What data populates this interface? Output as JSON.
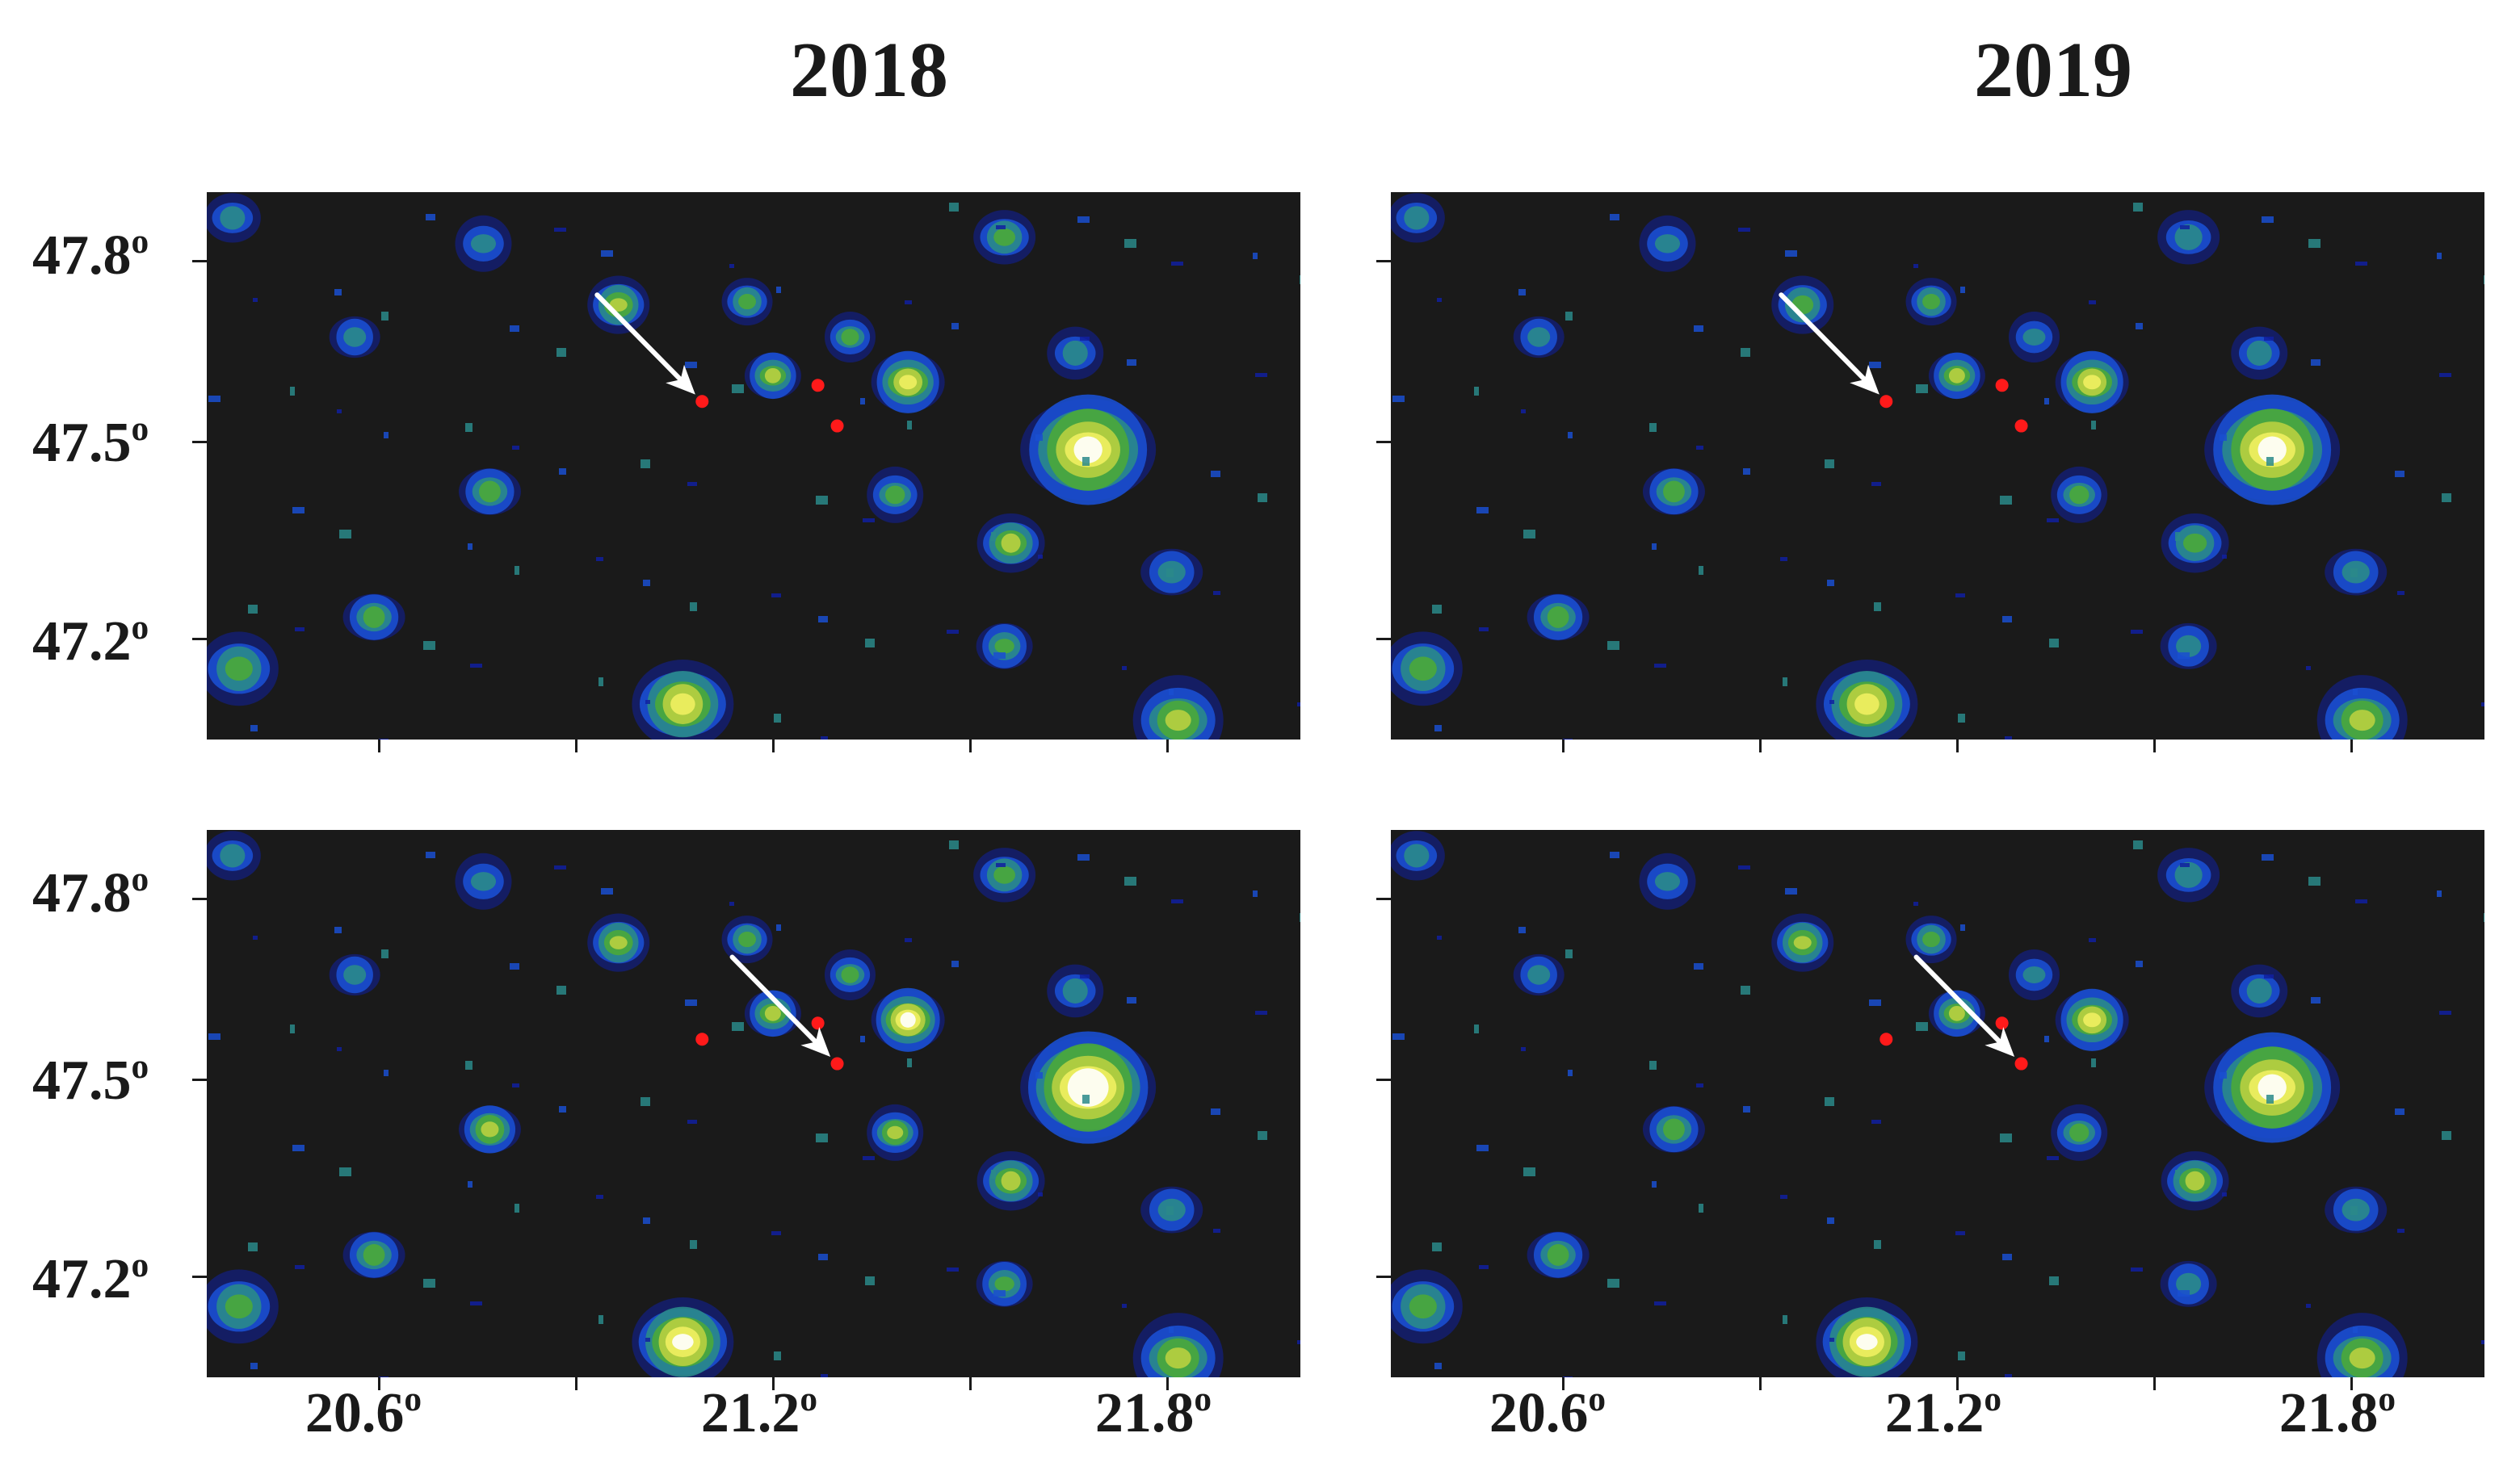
{
  "columns": [
    {
      "title": "2018"
    },
    {
      "title": "2019"
    }
  ],
  "axes": {
    "lat_labels": [
      "47.8",
      "47.5",
      "47.2"
    ],
    "lon_labels": [
      "20.6",
      "21.2",
      "21.8"
    ],
    "degree_symbol": "o"
  },
  "colors": {
    "background": "#1a1a1a",
    "marker": "#ff1a1a",
    "arrow": "#ffffff",
    "light_scale": [
      "#1020a0",
      "#1a4fd0",
      "#2a8a8a",
      "#4aa83a",
      "#b8d040",
      "#f0f060",
      "#ffffff"
    ]
  },
  "icons": [
    "red-marker-icon",
    "white-arrow-icon"
  ],
  "map_data": {
    "lat_range": [
      47.02,
      47.87
    ],
    "lon_range": [
      20.28,
      21.98
    ],
    "markers": [
      {
        "lon": 21.05,
        "lat": 47.545
      },
      {
        "lon": 21.23,
        "lat": 47.57
      },
      {
        "lon": 21.26,
        "lat": 47.507
      }
    ],
    "highlighted_marker": {
      "top_row": 0,
      "bottom_row": 2
    },
    "light_sources": [
      {
        "lon": 21.65,
        "lat": 47.47,
        "strength": 1.0,
        "spread": 1.0
      },
      {
        "lon": 21.02,
        "lat": 47.075,
        "strength": 0.85,
        "spread": 0.7
      },
      {
        "lon": 21.79,
        "lat": 47.05,
        "strength": 0.55,
        "spread": 0.6
      },
      {
        "lon": 21.37,
        "lat": 47.575,
        "strength": 0.8,
        "spread": 0.45
      },
      {
        "lon": 20.92,
        "lat": 47.695,
        "strength": 0.5,
        "spread": 0.35
      },
      {
        "lon": 20.72,
        "lat": 47.405,
        "strength": 0.45,
        "spread": 0.35
      },
      {
        "lon": 21.53,
        "lat": 47.325,
        "strength": 0.5,
        "spread": 0.4
      },
      {
        "lon": 21.35,
        "lat": 47.4,
        "strength": 0.45,
        "spread": 0.3
      },
      {
        "lon": 21.16,
        "lat": 47.585,
        "strength": 0.55,
        "spread": 0.3
      },
      {
        "lon": 20.33,
        "lat": 47.13,
        "strength": 0.35,
        "spread": 0.5
      },
      {
        "lon": 20.54,
        "lat": 47.21,
        "strength": 0.35,
        "spread": 0.35
      },
      {
        "lon": 21.52,
        "lat": 47.8,
        "strength": 0.3,
        "spread": 0.35
      },
      {
        "lon": 20.71,
        "lat": 47.79,
        "strength": 0.25,
        "spread": 0.3
      },
      {
        "lon": 21.52,
        "lat": 47.165,
        "strength": 0.3,
        "spread": 0.3
      },
      {
        "lon": 21.63,
        "lat": 47.62,
        "strength": 0.25,
        "spread": 0.3
      },
      {
        "lon": 21.78,
        "lat": 47.28,
        "strength": 0.25,
        "spread": 0.35
      },
      {
        "lon": 20.32,
        "lat": 47.83,
        "strength": 0.2,
        "spread": 0.3
      },
      {
        "lon": 21.28,
        "lat": 47.645,
        "strength": 0.3,
        "spread": 0.25
      },
      {
        "lon": 20.51,
        "lat": 47.645,
        "strength": 0.2,
        "spread": 0.25
      },
      {
        "lon": 21.12,
        "lat": 47.7,
        "strength": 0.35,
        "spread": 0.25
      }
    ]
  }
}
